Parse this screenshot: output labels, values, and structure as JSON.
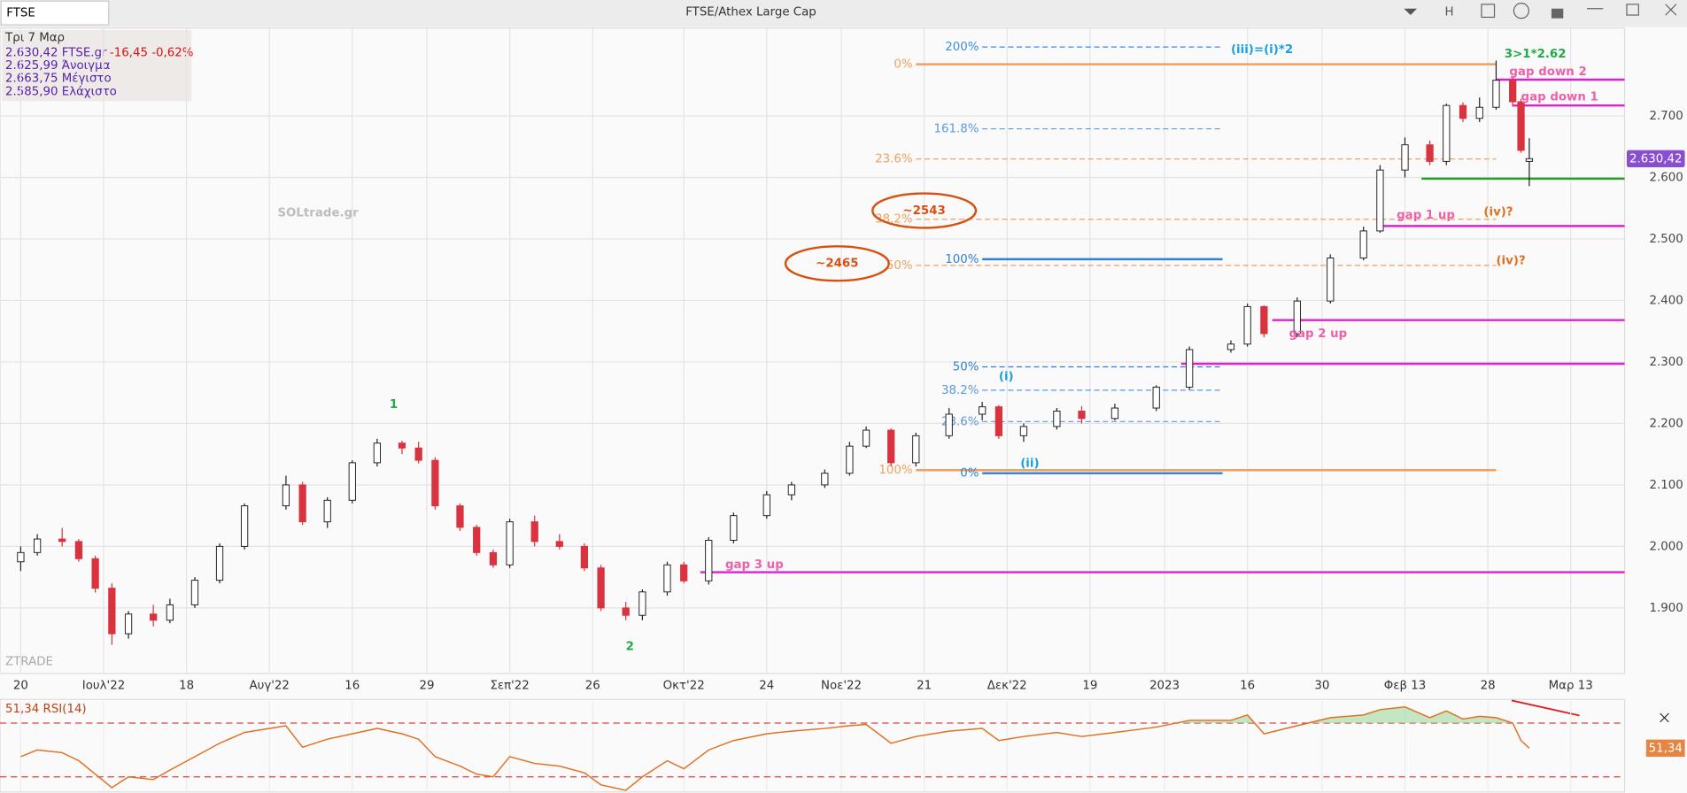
{
  "header": {
    "symbol": "FTSE",
    "title": "FTSE/Athex Large Cap",
    "button": "H"
  },
  "info": {
    "date": "Τρι 7 Μαρ",
    "last": "2.630,42 FTSE.gr",
    "change": "-16,45 -0,62%",
    "open": "2.625,99 Άνοιγμα",
    "high": "2.663,75 Μέγιστο",
    "low": "2.585,90 Ελάχιστο"
  },
  "watermark": "SOLtrade.gr",
  "brand": "ZTRADE",
  "chart_data": {
    "type": "candlestick",
    "up_color": "#ffffff",
    "down_color": "#d9333f",
    "grid": true,
    "ylim": [
      1795,
      2843
    ],
    "yticks": [
      {
        "value": 1900,
        "label": "1.900"
      },
      {
        "value": 2000,
        "label": "2.000"
      },
      {
        "value": 2100,
        "label": "2.100"
      },
      {
        "value": 2200,
        "label": "2.200"
      },
      {
        "value": 2300,
        "label": "2.300"
      },
      {
        "value": 2400,
        "label": "2.400"
      },
      {
        "value": 2500,
        "label": "2.500"
      },
      {
        "value": 2600,
        "label": "2.600"
      },
      {
        "value": 2700,
        "label": "2.700"
      }
    ],
    "xlim": [
      -2.5,
      193.5
    ],
    "xticks": [
      {
        "value": 0,
        "label": "20"
      },
      {
        "value": 10,
        "label": "Ιουλ'22"
      },
      {
        "value": 20,
        "label": "18"
      },
      {
        "value": 30,
        "label": "Αυγ'22"
      },
      {
        "value": 40,
        "label": "16"
      },
      {
        "value": 49,
        "label": "29"
      },
      {
        "value": 59,
        "label": "Σεπ'22"
      },
      {
        "value": 69,
        "label": "26"
      },
      {
        "value": 80,
        "label": "Οκτ'22"
      },
      {
        "value": 90,
        "label": "24"
      },
      {
        "value": 99,
        "label": "Νοε'22"
      },
      {
        "value": 109,
        "label": "21"
      },
      {
        "value": 119,
        "label": "Δεκ'22"
      },
      {
        "value": 129,
        "label": "19"
      },
      {
        "value": 138,
        "label": "2023"
      },
      {
        "value": 148,
        "label": "16"
      },
      {
        "value": 157,
        "label": "30"
      },
      {
        "value": 167,
        "label": "Φεβ 13"
      },
      {
        "value": 177,
        "label": "28"
      },
      {
        "value": 187,
        "label": "Μαρ 13"
      }
    ],
    "candles": [
      {
        "x": 0,
        "open": 1975,
        "high": 2000,
        "low": 1960,
        "close": 1990
      },
      {
        "x": 2,
        "open": 1990,
        "high": 2020,
        "low": 1985,
        "close": 2012
      },
      {
        "x": 5,
        "open": 2012,
        "high": 2030,
        "low": 2000,
        "close": 2008
      },
      {
        "x": 7,
        "open": 2008,
        "high": 2012,
        "low": 1975,
        "close": 1980
      },
      {
        "x": 9,
        "open": 1980,
        "high": 1985,
        "low": 1925,
        "close": 1932
      },
      {
        "x": 11,
        "open": 1932,
        "high": 1940,
        "low": 1840,
        "close": 1858
      },
      {
        "x": 13,
        "open": 1858,
        "high": 1895,
        "low": 1850,
        "close": 1890
      },
      {
        "x": 16,
        "open": 1890,
        "high": 1905,
        "low": 1870,
        "close": 1880
      },
      {
        "x": 18,
        "open": 1880,
        "high": 1915,
        "low": 1875,
        "close": 1905
      },
      {
        "x": 21,
        "open": 1905,
        "high": 1950,
        "low": 1900,
        "close": 1945
      },
      {
        "x": 24,
        "open": 1945,
        "high": 2005,
        "low": 1940,
        "close": 2000
      },
      {
        "x": 27,
        "open": 2000,
        "high": 2070,
        "low": 1995,
        "close": 2066
      },
      {
        "x": 32,
        "open": 2066,
        "high": 2115,
        "low": 2060,
        "close": 2100
      },
      {
        "x": 34,
        "open": 2100,
        "high": 2105,
        "low": 2035,
        "close": 2040
      },
      {
        "x": 37,
        "open": 2040,
        "high": 2080,
        "low": 2030,
        "close": 2075
      },
      {
        "x": 40,
        "open": 2075,
        "high": 2140,
        "low": 2070,
        "close": 2136
      },
      {
        "x": 43,
        "open": 2136,
        "high": 2175,
        "low": 2130,
        "close": 2168
      },
      {
        "x": 46,
        "open": 2168,
        "high": 2172,
        "low": 2150,
        "close": 2160
      },
      {
        "x": 48,
        "open": 2160,
        "high": 2170,
        "low": 2135,
        "close": 2140
      },
      {
        "x": 50,
        "open": 2140,
        "high": 2145,
        "low": 2060,
        "close": 2066
      },
      {
        "x": 53,
        "open": 2066,
        "high": 2070,
        "low": 2025,
        "close": 2031
      },
      {
        "x": 55,
        "open": 2031,
        "high": 2035,
        "low": 1985,
        "close": 1990
      },
      {
        "x": 57,
        "open": 1990,
        "high": 1995,
        "low": 1965,
        "close": 1970
      },
      {
        "x": 59,
        "open": 1970,
        "high": 2045,
        "low": 1965,
        "close": 2040
      },
      {
        "x": 62,
        "open": 2040,
        "high": 2050,
        "low": 2000,
        "close": 2008
      },
      {
        "x": 65,
        "open": 2008,
        "high": 2020,
        "low": 1995,
        "close": 2000
      },
      {
        "x": 68,
        "open": 2000,
        "high": 2005,
        "low": 1960,
        "close": 1965
      },
      {
        "x": 70,
        "open": 1965,
        "high": 1970,
        "low": 1895,
        "close": 1900
      },
      {
        "x": 73,
        "open": 1900,
        "high": 1910,
        "low": 1880,
        "close": 1888
      },
      {
        "x": 75,
        "open": 1888,
        "high": 1930,
        "low": 1880,
        "close": 1926
      },
      {
        "x": 78,
        "open": 1926,
        "high": 1975,
        "low": 1920,
        "close": 1970
      },
      {
        "x": 80,
        "open": 1970,
        "high": 1975,
        "low": 1940,
        "close": 1944
      },
      {
        "x": 83,
        "open": 1944,
        "high": 2015,
        "low": 1938,
        "close": 2010
      },
      {
        "x": 86,
        "open": 2010,
        "high": 2055,
        "low": 2005,
        "close": 2050
      },
      {
        "x": 90,
        "open": 2050,
        "high": 2090,
        "low": 2045,
        "close": 2084
      },
      {
        "x": 93,
        "open": 2084,
        "high": 2105,
        "low": 2075,
        "close": 2100
      },
      {
        "x": 97,
        "open": 2100,
        "high": 2125,
        "low": 2095,
        "close": 2119
      },
      {
        "x": 100,
        "open": 2119,
        "high": 2170,
        "low": 2115,
        "close": 2163
      },
      {
        "x": 102,
        "open": 2163,
        "high": 2195,
        "low": 2160,
        "close": 2189
      },
      {
        "x": 105,
        "open": 2189,
        "high": 2192,
        "low": 2130,
        "close": 2136
      },
      {
        "x": 108,
        "open": 2136,
        "high": 2185,
        "low": 2130,
        "close": 2180
      },
      {
        "x": 112,
        "open": 2180,
        "high": 2225,
        "low": 2175,
        "close": 2215
      },
      {
        "x": 116,
        "open": 2215,
        "high": 2235,
        "low": 2205,
        "close": 2227
      },
      {
        "x": 118,
        "open": 2227,
        "high": 2230,
        "low": 2175,
        "close": 2180
      },
      {
        "x": 121,
        "open": 2180,
        "high": 2200,
        "low": 2170,
        "close": 2195
      },
      {
        "x": 125,
        "open": 2195,
        "high": 2225,
        "low": 2190,
        "close": 2220
      },
      {
        "x": 128,
        "open": 2220,
        "high": 2228,
        "low": 2200,
        "close": 2208
      },
      {
        "x": 132,
        "open": 2208,
        "high": 2232,
        "low": 2205,
        "close": 2225
      },
      {
        "x": 137,
        "open": 2225,
        "high": 2262,
        "low": 2220,
        "close": 2259
      },
      {
        "x": 141,
        "open": 2259,
        "high": 2325,
        "low": 2255,
        "close": 2320
      },
      {
        "x": 146,
        "open": 2320,
        "high": 2335,
        "low": 2315,
        "close": 2329
      },
      {
        "x": 148,
        "open": 2329,
        "high": 2395,
        "low": 2325,
        "close": 2390
      },
      {
        "x": 150,
        "open": 2390,
        "high": 2392,
        "low": 2340,
        "close": 2346
      },
      {
        "x": 154,
        "open": 2346,
        "high": 2405,
        "low": 2340,
        "close": 2399
      },
      {
        "x": 158,
        "open": 2399,
        "high": 2475,
        "low": 2395,
        "close": 2469
      },
      {
        "x": 162,
        "open": 2469,
        "high": 2520,
        "low": 2465,
        "close": 2513
      },
      {
        "x": 164,
        "open": 2513,
        "high": 2620,
        "low": 2510,
        "close": 2612
      },
      {
        "x": 167,
        "open": 2612,
        "high": 2665,
        "low": 2600,
        "close": 2653
      },
      {
        "x": 170,
        "open": 2653,
        "high": 2660,
        "low": 2620,
        "close": 2626
      },
      {
        "x": 172,
        "open": 2626,
        "high": 2720,
        "low": 2620,
        "close": 2717
      },
      {
        "x": 174,
        "open": 2717,
        "high": 2722,
        "low": 2690,
        "close": 2696
      },
      {
        "x": 176,
        "open": 2696,
        "high": 2730,
        "low": 2690,
        "close": 2714
      },
      {
        "x": 178,
        "open": 2714,
        "high": 2790,
        "low": 2710,
        "close": 2758
      },
      {
        "x": 180,
        "open": 2758,
        "high": 2765,
        "low": 2715,
        "close": 2723
      },
      {
        "x": 181,
        "open": 2723,
        "high": 2728,
        "low": 2640,
        "close": 2644
      },
      {
        "x": 182,
        "open": 2625.99,
        "high": 2663.75,
        "low": 2585.9,
        "close": 2630.42
      }
    ],
    "last_label": "2.630,42",
    "last_color": "#8a4fd0",
    "levels": [
      {
        "label": "200%",
        "price": 2812,
        "from": 116,
        "to": 145,
        "color": "#3b8ee0",
        "dashed": true
      },
      {
        "label": "0%",
        "price": 2784,
        "from": 108,
        "to": 178,
        "color": "#f0a060",
        "dashed": false
      },
      {
        "label": "161.8%",
        "price": 2679,
        "from": 116,
        "to": 145,
        "color": "#5a9ae0",
        "dashed": true
      },
      {
        "label": "23.6%",
        "price": 2630,
        "from": 108,
        "to": 178,
        "color": "#f0a060",
        "dashed": true
      },
      {
        "label": "38.2%",
        "price": 2532,
        "from": 108,
        "to": 178,
        "color": "#f0a060",
        "dashed": true
      },
      {
        "label": "50%",
        "price": 2457,
        "from": 108,
        "to": 178,
        "color": "#f0a060",
        "dashed": true
      },
      {
        "label": "100%",
        "price": 2467,
        "from": 116,
        "to": 145,
        "color": "#2f80d8",
        "dashed": false
      },
      {
        "label": "50%",
        "price": 2292,
        "from": 116,
        "to": 145,
        "color": "#2f80d8",
        "dashed": true
      },
      {
        "label": "38.2%",
        "price": 2254,
        "from": 116,
        "to": 145,
        "color": "#5a9ae0",
        "dashed": true
      },
      {
        "label": "23.6%",
        "price": 2203,
        "from": 116,
        "to": 145,
        "color": "#5a9ae0",
        "dashed": true
      },
      {
        "label": "100%",
        "price": 2124,
        "from": 108,
        "to": 178,
        "color": "#f0a060",
        "dashed": false
      },
      {
        "label": "0%",
        "price": 2119,
        "from": 116,
        "to": 145,
        "color": "#2f80d8",
        "dashed": false
      },
      {
        "price": 2759,
        "from": 178,
        "to": 193.5,
        "color": "#e020d0",
        "dashed": false
      },
      {
        "price": 2717,
        "from": 180,
        "to": 193.5,
        "color": "#e020d0",
        "dashed": false
      },
      {
        "price": 2521,
        "from": 164,
        "to": 193.5,
        "color": "#e020d0",
        "dashed": false
      },
      {
        "price": 2368,
        "from": 151,
        "to": 193.5,
        "color": "#e020d0",
        "dashed": false
      },
      {
        "price": 2297,
        "from": 140,
        "to": 193.5,
        "color": "#e020d0",
        "dashed": false
      },
      {
        "price": 1958,
        "from": 82,
        "to": 193.5,
        "color": "#e020d0",
        "dashed": false
      },
      {
        "price": 2598,
        "from": 169,
        "to": 193.5,
        "color": "#2aa02a",
        "dashed": false
      }
    ],
    "annotations": [
      {
        "text": "(iii)=(i)*2",
        "price": 2808,
        "x": 146,
        "color": "#1aa0e0",
        "size": 15
      },
      {
        "text": "3>1*2.62",
        "price": 2801,
        "x": 179,
        "color": "#22aa44",
        "size": 18
      },
      {
        "text": "gap down 2",
        "price": 2772,
        "x": 179.6,
        "color": "#f060a8",
        "size": 14
      },
      {
        "text": "gap down 1",
        "price": 2731,
        "x": 181,
        "color": "#f060a8",
        "size": 14
      },
      {
        "text": "gap 1 up",
        "price": 2539,
        "x": 166,
        "color": "#f060a8",
        "size": 14
      },
      {
        "text": "(iv)?",
        "price": 2544,
        "x": 176.5,
        "color": "#e07020",
        "size": 14
      },
      {
        "text": "(iv)?",
        "price": 2465,
        "x": 178,
        "color": "#e07020",
        "size": 14
      },
      {
        "text": "~2543",
        "price": 2546,
        "x": 109,
        "color": "#d85010",
        "size": 14,
        "circled": true
      },
      {
        "text": "~2465",
        "price": 2460,
        "x": 98.5,
        "color": "#d85010",
        "size": 14,
        "circled": true
      },
      {
        "text": "gap 2 up",
        "price": 2346,
        "x": 153,
        "color": "#f060a8",
        "size": 14
      },
      {
        "text": "(i)",
        "price": 2276,
        "x": 118,
        "color": "#1aa0e0",
        "size": 15
      },
      {
        "text": "(ii)",
        "price": 2135,
        "x": 120.6,
        "color": "#1aa0e0",
        "size": 15
      },
      {
        "text": "gap 3 up",
        "price": 1970,
        "x": 85,
        "color": "#f060a8",
        "size": 14
      },
      {
        "text": "1",
        "price": 2231,
        "x": 44.5,
        "color": "#22aa44",
        "size": 17
      },
      {
        "text": "2",
        "price": 1837,
        "x": 73,
        "color": "#22aa44",
        "size": 17
      }
    ],
    "rsi": {
      "label": "51,34 RSI(14)",
      "value_label": "51,34",
      "color": "#e07020",
      "ylim": [
        19.6,
        86
      ],
      "levels": [
        70,
        30
      ],
      "values": [
        45,
        50,
        48,
        42,
        32,
        22,
        30,
        28,
        35,
        45,
        55,
        63,
        68,
        52,
        58,
        62,
        66,
        62,
        58,
        45,
        38,
        32,
        30,
        45,
        40,
        38,
        33,
        24,
        20,
        30,
        42,
        36,
        50,
        57,
        62,
        64,
        66,
        68,
        69,
        55,
        60,
        64,
        66,
        57,
        60,
        63,
        60,
        63,
        67,
        72,
        72,
        76,
        62,
        68,
        74,
        76,
        80,
        82,
        74,
        79,
        73,
        75,
        74,
        70,
        57,
        51.34
      ]
    }
  }
}
